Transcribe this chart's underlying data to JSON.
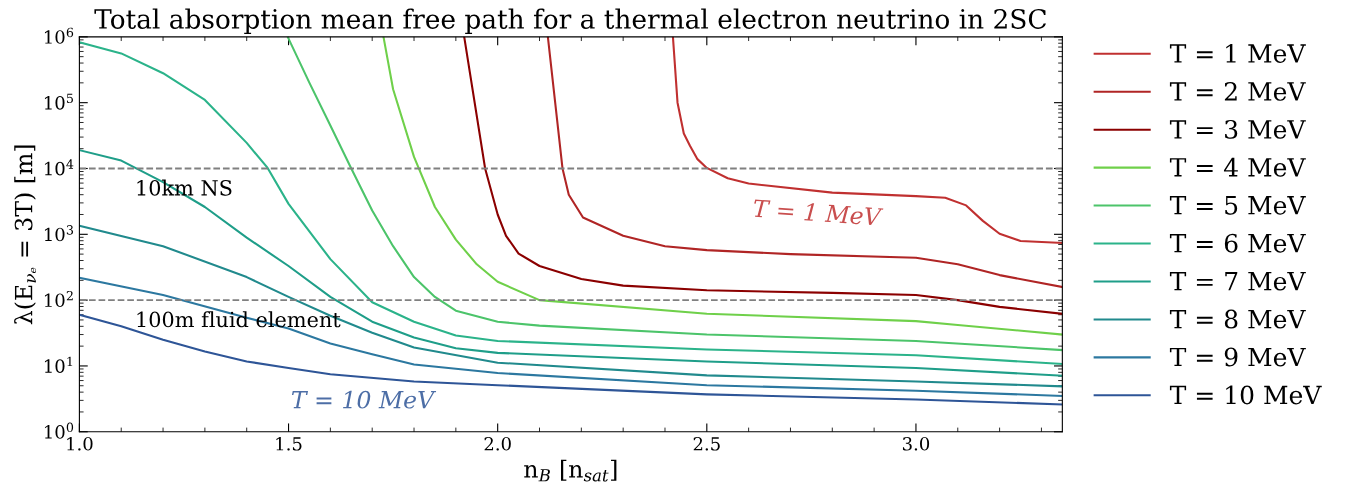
{
  "chart_data": {
    "type": "line",
    "title": "Total absorption mean free path for a thermal electron neutrino in 2SC",
    "xlabel": "n$_{B}$ [n$_{sat}$]",
    "ylabel": "λ(E$_{νₑ}$ = 3T) [m]",
    "log": "y",
    "xlim": [
      1.0,
      3.35
    ],
    "ylim": [
      1,
      1000000
    ],
    "xticks": [
      {
        "value": 1.0,
        "label": "1.0"
      },
      {
        "value": 1.5,
        "label": "1.5"
      },
      {
        "value": 2.0,
        "label": "2.0"
      },
      {
        "value": 2.5,
        "label": "2.5"
      },
      {
        "value": 3.0,
        "label": "3.0"
      }
    ],
    "yticks": [
      {
        "value": 1,
        "label": "10$^{0}$"
      },
      {
        "value": 10,
        "label": "10$^{1}$"
      },
      {
        "value": 100,
        "label": "10$^{2}$"
      },
      {
        "value": 1000,
        "label": "10$^{3}$"
      },
      {
        "value": 10000,
        "label": "10$^{4}$"
      },
      {
        "value": 100000,
        "label": "10$^{5}$"
      },
      {
        "value": 1000000,
        "label": "10$^{6}$"
      }
    ],
    "grid": false,
    "legend": "right",
    "marker": "none",
    "line_style": "solid",
    "series": [
      {
        "name": "T = 1 MeV",
        "color": "#c03030",
        "x": [
          2.419,
          2.43,
          2.445,
          2.46,
          2.477,
          2.5,
          2.55,
          2.6,
          2.8,
          3.0,
          3.07,
          3.12,
          3.16,
          3.2,
          3.25,
          3.35
        ],
        "values": [
          1000000,
          100000,
          34000,
          22000,
          14000,
          10200,
          7100,
          5900,
          4300,
          3800,
          3600,
          2750,
          1600,
          1020,
          790,
          740
        ]
      },
      {
        "name": "T = 2 MeV",
        "color": "#b02525",
        "x": [
          2.12,
          2.155,
          2.17,
          2.204,
          2.3,
          2.4,
          2.5,
          2.7,
          3.0,
          3.1,
          3.2,
          3.35
        ],
        "values": [
          1000000,
          10000,
          4000,
          1800,
          950,
          660,
          575,
          500,
          440,
          350,
          240,
          158
        ]
      },
      {
        "name": "T = 3 MeV",
        "color": "#8b0000",
        "x": [
          1.92,
          1.97,
          2.0,
          2.02,
          2.05,
          2.1,
          2.2,
          2.3,
          2.5,
          2.8,
          3.0,
          3.1,
          3.2,
          3.35
        ],
        "values": [
          1000000,
          10000,
          2000,
          950,
          510,
          330,
          210,
          166,
          141,
          129,
          120,
          100,
          79,
          62
        ]
      },
      {
        "name": "T = 4 MeV",
        "color": "#6fd04a",
        "x": [
          1.727,
          1.75,
          1.8,
          1.85,
          1.9,
          1.95,
          2.0,
          2.1,
          2.5,
          3.0,
          3.1,
          3.35
        ],
        "values": [
          1000000,
          160000,
          15000,
          2600,
          830,
          350,
          190,
          100,
          62,
          48,
          42,
          30
        ]
      },
      {
        "name": "T = 5 MeV",
        "color": "#4cc46a",
        "x": [
          1.498,
          1.55,
          1.6,
          1.65,
          1.7,
          1.75,
          1.8,
          1.85,
          1.9,
          2.0,
          2.1,
          2.5,
          3.0,
          3.35
        ],
        "values": [
          1000000,
          200000,
          45000,
          10000,
          2300,
          660,
          224,
          112,
          69,
          47,
          41,
          30,
          24,
          17.4
        ]
      },
      {
        "name": "T = 6 MeV",
        "color": "#2bb38a",
        "x": [
          1.0,
          1.1,
          1.2,
          1.3,
          1.4,
          1.45,
          1.5,
          1.6,
          1.7,
          1.8,
          1.9,
          2.0,
          2.5,
          3.0,
          3.35
        ],
        "values": [
          830000,
          560000,
          280000,
          110000,
          24500,
          10200,
          2900,
          420,
          93,
          47,
          29,
          24,
          17.8,
          14.5,
          10.7
        ]
      },
      {
        "name": "T = 7 MeV",
        "color": "#1f9e89",
        "x": [
          1.0,
          1.1,
          1.2,
          1.3,
          1.4,
          1.5,
          1.6,
          1.7,
          1.8,
          1.9,
          2.0,
          2.5,
          3.0,
          3.35
        ],
        "values": [
          19000,
          13200,
          6200,
          2600,
          890,
          330,
          112,
          47,
          27,
          18.6,
          15.8,
          11.7,
          9.3,
          7.1
        ]
      },
      {
        "name": "T = 8 MeV",
        "color": "#218a8d",
        "x": [
          1.0,
          1.2,
          1.4,
          1.5,
          1.6,
          1.7,
          1.8,
          2.0,
          2.5,
          3.0,
          3.35
        ],
        "values": [
          1350,
          660,
          224,
          112,
          58,
          32,
          19,
          11.2,
          7.2,
          5.8,
          4.9
        ]
      },
      {
        "name": "T = 9 MeV",
        "color": "#2c78a0",
        "x": [
          1.0,
          1.2,
          1.4,
          1.5,
          1.6,
          1.7,
          1.8,
          2.0,
          2.5,
          3.0,
          3.35
        ],
        "values": [
          219,
          120,
          54,
          37,
          22,
          15,
          10.5,
          7.8,
          5.1,
          4.2,
          3.5
        ]
      },
      {
        "name": "T = 10 MeV",
        "color": "#2e5597",
        "x": [
          1.0,
          1.1,
          1.2,
          1.3,
          1.4,
          1.5,
          1.6,
          1.8,
          2.0,
          2.5,
          3.0,
          3.35
        ],
        "values": [
          60,
          40,
          25,
          16.6,
          11.7,
          9.3,
          7.5,
          5.8,
          5.1,
          3.7,
          3.1,
          2.6
        ]
      }
    ],
    "ref_lines": [
      {
        "axis": "y",
        "value": 10000,
        "label": "10km NS",
        "color": "#808080",
        "line_style": "dashed"
      },
      {
        "axis": "y",
        "value": 100,
        "label": "100m fluid element",
        "color": "#808080",
        "line_style": "dashed"
      }
    ],
    "annotations": [
      "T = 1 MeV",
      "T = 10 MeV"
    ]
  }
}
